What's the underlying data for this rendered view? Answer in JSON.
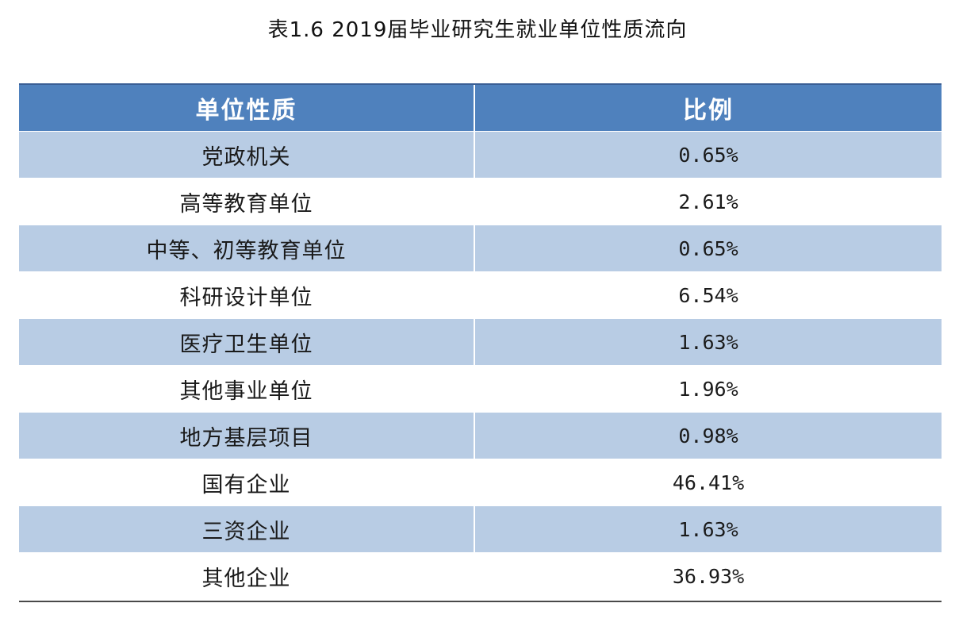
{
  "title": "表1.6 2019届毕业研究生就业单位性质流向",
  "table": {
    "headers": {
      "unit_type": "单位性质",
      "ratio": "比例"
    },
    "rows": [
      {
        "unit_type": "党政机关",
        "ratio": "0.65%"
      },
      {
        "unit_type": "高等教育单位",
        "ratio": "2.61%"
      },
      {
        "unit_type": "中等、初等教育单位",
        "ratio": "0.65%"
      },
      {
        "unit_type": "科研设计单位",
        "ratio": "6.54%"
      },
      {
        "unit_type": "医疗卫生单位",
        "ratio": "1.63%"
      },
      {
        "unit_type": "其他事业单位",
        "ratio": "1.96%"
      },
      {
        "unit_type": "地方基层项目",
        "ratio": "0.98%"
      },
      {
        "unit_type": "国有企业",
        "ratio": "46.41%"
      },
      {
        "unit_type": "三资企业",
        "ratio": "1.63%"
      },
      {
        "unit_type": "其他企业",
        "ratio": "36.93%"
      }
    ]
  },
  "colors": {
    "header_background": "#4f81bd",
    "header_text": "#ffffff",
    "band_row": "#b8cce4",
    "plain_row": "#ffffff",
    "body_text": "#1a1a1a"
  }
}
